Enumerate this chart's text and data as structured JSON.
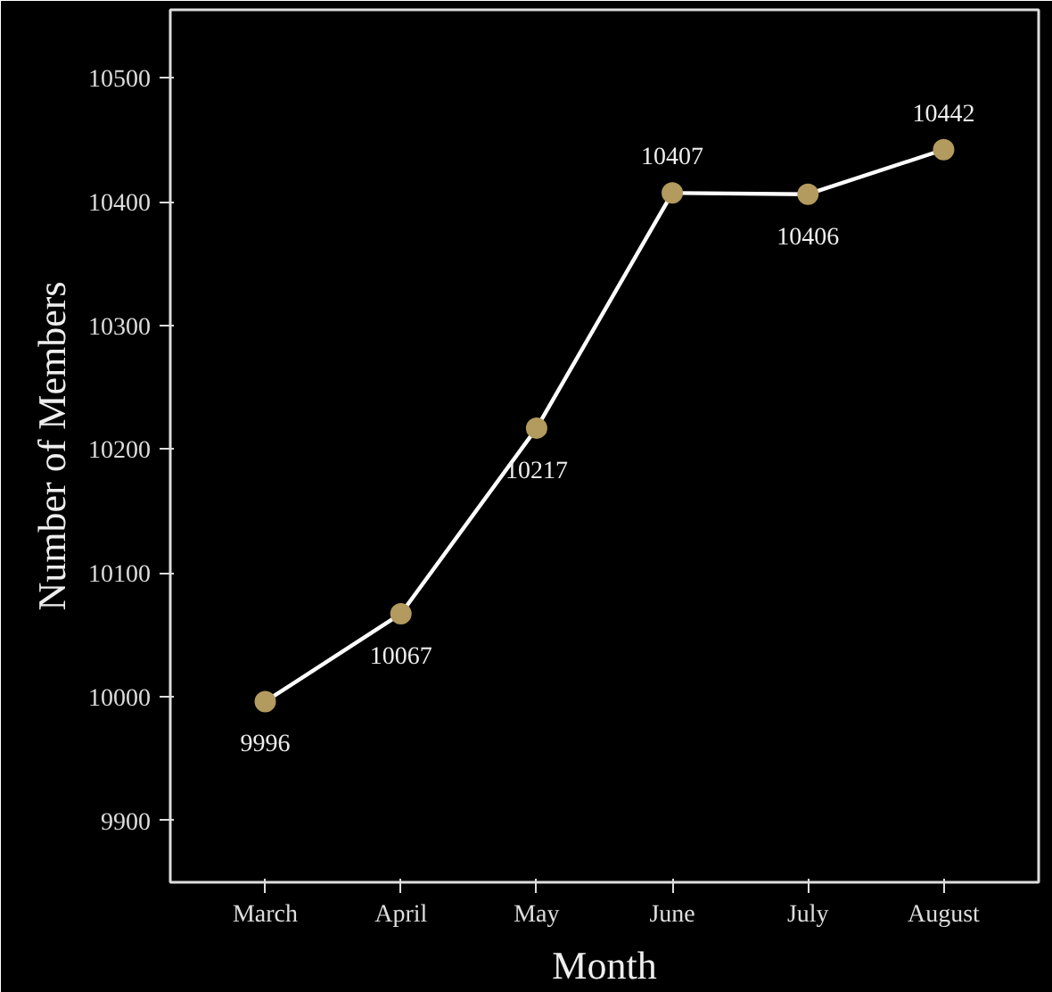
{
  "chart_data": {
    "type": "line",
    "xlabel": "Month",
    "ylabel": "Number of Members",
    "categories": [
      "March",
      "April",
      "May",
      "June",
      "July",
      "August"
    ],
    "series": [
      {
        "color": "#ffffff",
        "colors": [
          "#b39a5e",
          "#b39a5e",
          "#b39a5e",
          "#b39a5e",
          "#b39a5e",
          "#b39a5e"
        ],
        "values": [
          9996,
          10067,
          10217,
          10407,
          10406,
          10442
        ]
      }
    ],
    "ylim": [
      9850,
      10555
    ],
    "yticks": [
      9900,
      10000,
      10100,
      10200,
      10300,
      10400,
      10500
    ],
    "marker": "circle",
    "line_style": "solid",
    "data_labels": true,
    "grid": false
  }
}
